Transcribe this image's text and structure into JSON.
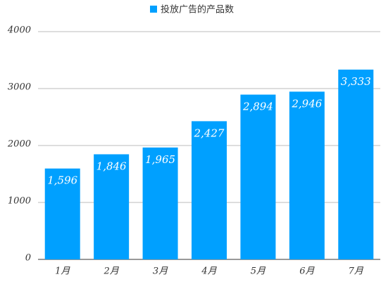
{
  "chart_data": {
    "type": "bar",
    "categories": [
      "1月",
      "2月",
      "3月",
      "4月",
      "5月",
      "6月",
      "7月"
    ],
    "series": [
      {
        "name": "投放广告的产品数",
        "color": "#00a0ff",
        "values": [
          1596,
          1846,
          1965,
          2427,
          2894,
          2946,
          3333
        ],
        "value_labels": [
          "1,596",
          "1,846",
          "1,965",
          "2,427",
          "2,894",
          "2,946",
          "3,333"
        ]
      }
    ],
    "ylim": [
      0,
      4000
    ],
    "yticks": [
      0,
      1000,
      2000,
      3000,
      4000
    ],
    "grid": true,
    "legend": "top"
  }
}
